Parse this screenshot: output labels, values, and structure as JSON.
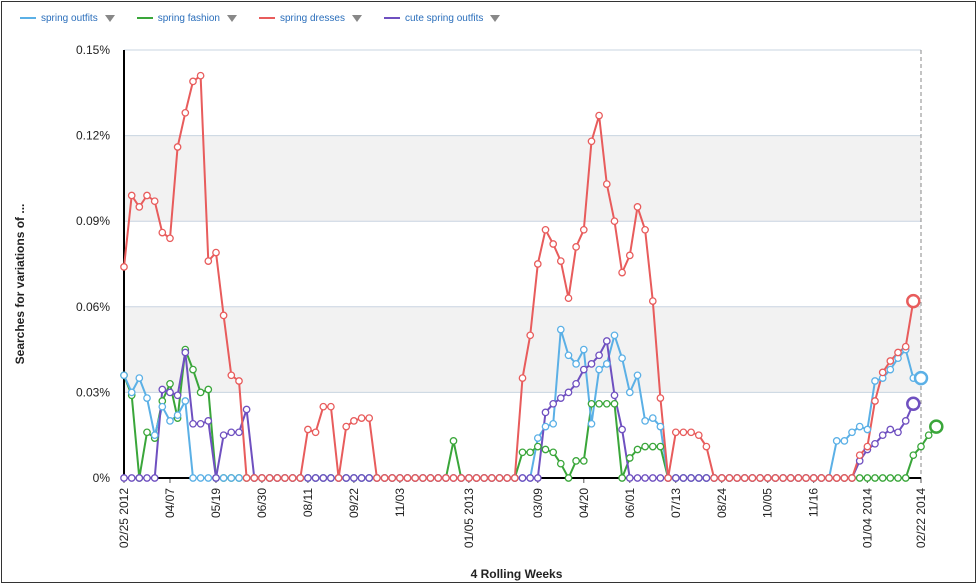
{
  "legend": [
    {
      "name": "spring outfits",
      "color": "#5bb0e6",
      "icon": "chevron-down-icon"
    },
    {
      "name": "spring fashion",
      "color": "#3aa63a",
      "icon": "chevron-down-icon"
    },
    {
      "name": "spring dresses",
      "color": "#e85c5c",
      "icon": "chevron-down-icon"
    },
    {
      "name": "cute spring outfits",
      "color": "#6f50c0",
      "icon": "chevron-down-icon"
    }
  ],
  "chart_data": {
    "type": "line",
    "title": "",
    "xlabel": "4 Rolling Weeks",
    "ylabel": "Searches for variations of ...",
    "ylim": [
      0,
      0.15
    ],
    "yticks": [
      {
        "value": 0,
        "label": "0%"
      },
      {
        "value": 0.03,
        "label": "0.03%"
      },
      {
        "value": 0.06,
        "label": "0.06%"
      },
      {
        "value": 0.09,
        "label": "0.09%"
      },
      {
        "value": 0.12,
        "label": "0.12%"
      },
      {
        "value": 0.15,
        "label": "0.15%"
      }
    ],
    "grid": true,
    "legend_position": "top-left",
    "n_points": 105,
    "xticks": [
      {
        "index": 0,
        "label": "02/25 2012"
      },
      {
        "index": 6,
        "label": "04/07"
      },
      {
        "index": 12,
        "label": "05/19"
      },
      {
        "index": 18,
        "label": "06/30"
      },
      {
        "index": 24,
        "label": "08/11"
      },
      {
        "index": 30,
        "label": "09/22"
      },
      {
        "index": 36,
        "label": "11/03"
      },
      {
        "index": 45,
        "label": "01/05 2013"
      },
      {
        "index": 54,
        "label": "03/09"
      },
      {
        "index": 60,
        "label": "04/20"
      },
      {
        "index": 66,
        "label": "06/01"
      },
      {
        "index": 72,
        "label": "07/13"
      },
      {
        "index": 78,
        "label": "08/24"
      },
      {
        "index": 84,
        "label": "10/05"
      },
      {
        "index": 90,
        "label": "11/16"
      },
      {
        "index": 97,
        "label": "01/04 2014"
      },
      {
        "index": 104,
        "label": "02/22 2014"
      }
    ],
    "series": [
      {
        "name": "spring outfits",
        "color": "#5bb0e6",
        "values": [
          0.036,
          0.03,
          0.035,
          0.028,
          0.015,
          0.025,
          0.02,
          0.022,
          0.027,
          0,
          0,
          0,
          0,
          0,
          0,
          0,
          0,
          0,
          0,
          0,
          0,
          0,
          0,
          0,
          0,
          0,
          0,
          0,
          0,
          0,
          0,
          0,
          0,
          0,
          0,
          0,
          0,
          0,
          0,
          0,
          0,
          0,
          0,
          0,
          0,
          0,
          0,
          0,
          0,
          0,
          0,
          0,
          0,
          0,
          0.014,
          0.018,
          0.019,
          0.052,
          0.043,
          0.04,
          0.045,
          0.019,
          0.038,
          0.04,
          0.05,
          0.042,
          0.03,
          0.036,
          0.02,
          0.021,
          0.018,
          0,
          0,
          0,
          0,
          0,
          0,
          0,
          0,
          0,
          0,
          0,
          0,
          0,
          0,
          0,
          0,
          0,
          0,
          0,
          0,
          0,
          0,
          0.013,
          0.013,
          0.016,
          0.018,
          0.017,
          0.034,
          0.035,
          0.038,
          0.042,
          0.045,
          0.035,
          0.035
        ]
      },
      {
        "name": "spring fashion",
        "color": "#3aa63a",
        "values": [
          0.036,
          0.029,
          0,
          0.016,
          0.014,
          0.027,
          0.033,
          0.021,
          0.045,
          0.038,
          0.03,
          0.031,
          0,
          0,
          0,
          0,
          0,
          0,
          0,
          0,
          0,
          0,
          0,
          0,
          0,
          0,
          0,
          0,
          0,
          0,
          0,
          0,
          0,
          0,
          0,
          0,
          0,
          0,
          0,
          0,
          0,
          0,
          0,
          0.013,
          0,
          0,
          0,
          0,
          0,
          0,
          0,
          0,
          0.009,
          0.009,
          0.011,
          0.01,
          0.009,
          0.005,
          0,
          0.006,
          0.006,
          0.026,
          0.026,
          0.026,
          0.026,
          0,
          0.007,
          0.01,
          0.011,
          0.011,
          0.011,
          0,
          0,
          0,
          0,
          0,
          0,
          0,
          0,
          0,
          0,
          0,
          0,
          0,
          0,
          0,
          0,
          0,
          0,
          0,
          0,
          0,
          0,
          0,
          0,
          0,
          0,
          0,
          0,
          0,
          0,
          0,
          0,
          0.008,
          0.011,
          0.015,
          0.018
        ]
      },
      {
        "name": "spring dresses",
        "color": "#e85c5c",
        "values": [
          0.074,
          0.099,
          0.095,
          0.099,
          0.097,
          0.086,
          0.084,
          0.116,
          0.128,
          0.139,
          0.141,
          0.076,
          0.079,
          0.057,
          0.036,
          0.034,
          0,
          0,
          0,
          0,
          0,
          0,
          0,
          0,
          0.017,
          0.016,
          0.025,
          0.025,
          0,
          0.018,
          0.02,
          0.021,
          0.021,
          0,
          0,
          0,
          0,
          0,
          0,
          0,
          0,
          0,
          0,
          0,
          0,
          0,
          0,
          0,
          0,
          0,
          0,
          0,
          0.035,
          0.05,
          0.075,
          0.087,
          0.082,
          0.076,
          0.063,
          0.081,
          0.087,
          0.118,
          0.127,
          0.103,
          0.09,
          0.072,
          0.078,
          0.095,
          0.087,
          0.062,
          0.028,
          0,
          0.016,
          0.016,
          0.016,
          0.015,
          0.011,
          0,
          0,
          0,
          0,
          0,
          0,
          0,
          0,
          0,
          0,
          0,
          0,
          0,
          0,
          0,
          0,
          0,
          0,
          0,
          0.008,
          0.011,
          0.027,
          0.037,
          0.041,
          0.044,
          0.046,
          0.062
        ]
      },
      {
        "name": "cute spring outfits",
        "color": "#6f50c0",
        "values": [
          0,
          0,
          0,
          0,
          0,
          0.031,
          0.03,
          0.029,
          0.044,
          0.019,
          0.019,
          0.02,
          0,
          0.015,
          0.016,
          0.016,
          0.024,
          0,
          0,
          0,
          0,
          0,
          0,
          0,
          0,
          0,
          0,
          0,
          0,
          0,
          0,
          0,
          0,
          0,
          0,
          0,
          0,
          0,
          0,
          0,
          0,
          0,
          0,
          0,
          0,
          0,
          0,
          0,
          0,
          0,
          0,
          0,
          0,
          0,
          0,
          0.023,
          0.026,
          0.028,
          0.03,
          0.033,
          0.038,
          0.04,
          0.043,
          0.048,
          0.029,
          0.017,
          0,
          0,
          0,
          0,
          0,
          0,
          0,
          0,
          0,
          0,
          0,
          0,
          0,
          0,
          0,
          0,
          0,
          0,
          0,
          0,
          0,
          0,
          0,
          0,
          0,
          0,
          0,
          0,
          0,
          0,
          0.006,
          0.01,
          0.012,
          0.015,
          0.017,
          0.016,
          0.02,
          0.026
        ]
      }
    ]
  }
}
